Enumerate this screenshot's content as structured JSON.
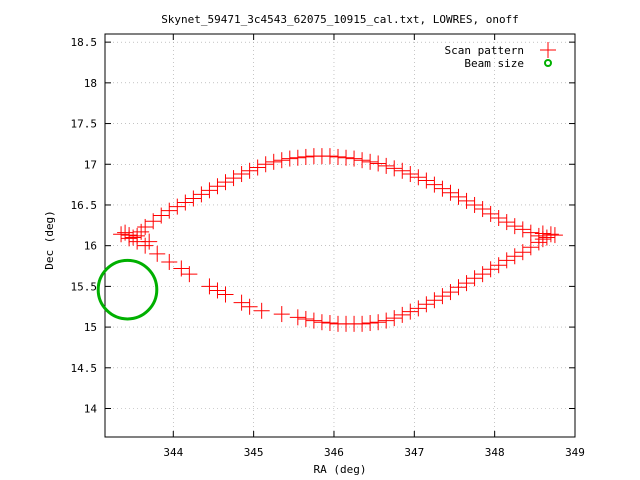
{
  "chart_data": {
    "type": "scatter",
    "title": "Skynet_59471_3c4543_62075_10915_cal.txt, LOWRES, onoff",
    "xlabel": "RA (deg)",
    "ylabel": "Dec (deg)",
    "xlim": [
      343.15,
      349.0
    ],
    "ylim": [
      13.65,
      18.6
    ],
    "xticks": [
      "344",
      "345",
      "346",
      "347",
      "348",
      "349"
    ],
    "yticks": [
      "14",
      "14.5",
      "15",
      "15.5",
      "16",
      "16.5",
      "17",
      "17.5",
      "18",
      "18.5"
    ],
    "legend_position": "top-right",
    "series": [
      {
        "name": "Scan pattern",
        "marker": "plus",
        "color": "#ff0000",
        "points": [
          [
            343.35,
            16.14
          ],
          [
            343.45,
            16.13
          ],
          [
            343.55,
            16.12
          ],
          [
            343.4,
            16.16
          ],
          [
            343.5,
            16.1
          ],
          [
            343.65,
            16.23
          ],
          [
            343.75,
            16.3
          ],
          [
            343.85,
            16.37
          ],
          [
            343.95,
            16.43
          ],
          [
            344.05,
            16.48
          ],
          [
            344.15,
            16.53
          ],
          [
            344.25,
            16.58
          ],
          [
            344.35,
            16.63
          ],
          [
            344.45,
            16.68
          ],
          [
            344.55,
            16.73
          ],
          [
            344.65,
            16.78
          ],
          [
            344.75,
            16.83
          ],
          [
            344.85,
            16.88
          ],
          [
            344.95,
            16.92
          ],
          [
            345.05,
            16.96
          ],
          [
            345.15,
            17.0
          ],
          [
            345.25,
            17.03
          ],
          [
            345.35,
            17.05
          ],
          [
            345.45,
            17.07
          ],
          [
            345.55,
            17.08
          ],
          [
            345.65,
            17.09
          ],
          [
            345.75,
            17.1
          ],
          [
            345.85,
            17.1
          ],
          [
            345.95,
            17.1
          ],
          [
            346.05,
            17.09
          ],
          [
            346.15,
            17.08
          ],
          [
            346.25,
            17.07
          ],
          [
            346.35,
            17.05
          ],
          [
            346.45,
            17.03
          ],
          [
            346.55,
            17.01
          ],
          [
            346.65,
            16.98
          ],
          [
            346.75,
            16.95
          ],
          [
            346.85,
            16.92
          ],
          [
            346.95,
            16.88
          ],
          [
            347.05,
            16.84
          ],
          [
            347.15,
            16.8
          ],
          [
            347.25,
            16.75
          ],
          [
            347.35,
            16.7
          ],
          [
            347.45,
            16.65
          ],
          [
            347.55,
            16.6
          ],
          [
            347.65,
            16.55
          ],
          [
            347.75,
            16.5
          ],
          [
            347.85,
            16.45
          ],
          [
            347.95,
            16.39
          ],
          [
            348.05,
            16.34
          ],
          [
            348.15,
            16.29
          ],
          [
            348.25,
            16.24
          ],
          [
            348.35,
            16.2
          ],
          [
            348.45,
            16.16
          ],
          [
            348.55,
            16.12
          ],
          [
            348.6,
            16.15
          ],
          [
            348.65,
            16.1
          ],
          [
            348.7,
            16.14
          ],
          [
            348.75,
            16.13
          ],
          [
            348.6,
            16.08
          ],
          [
            348.55,
            16.04
          ],
          [
            348.45,
            15.98
          ],
          [
            348.35,
            15.92
          ],
          [
            348.25,
            15.87
          ],
          [
            348.15,
            15.82
          ],
          [
            348.05,
            15.76
          ],
          [
            347.95,
            15.71
          ],
          [
            347.85,
            15.65
          ],
          [
            347.75,
            15.6
          ],
          [
            347.65,
            15.54
          ],
          [
            347.55,
            15.49
          ],
          [
            347.45,
            15.43
          ],
          [
            347.35,
            15.38
          ],
          [
            347.25,
            15.33
          ],
          [
            347.15,
            15.28
          ],
          [
            347.05,
            15.23
          ],
          [
            346.95,
            15.19
          ],
          [
            346.85,
            15.15
          ],
          [
            346.75,
            15.11
          ],
          [
            346.65,
            15.08
          ],
          [
            346.55,
            15.06
          ],
          [
            346.45,
            15.05
          ],
          [
            346.35,
            15.04
          ],
          [
            346.25,
            15.04
          ],
          [
            346.15,
            15.04
          ],
          [
            346.05,
            15.04
          ],
          [
            345.95,
            15.05
          ],
          [
            345.85,
            15.06
          ],
          [
            345.75,
            15.08
          ],
          [
            345.65,
            15.1
          ],
          [
            345.55,
            15.12
          ],
          [
            345.35,
            15.16
          ],
          [
            345.1,
            15.2
          ],
          [
            344.95,
            15.25
          ],
          [
            344.85,
            15.3
          ],
          [
            344.65,
            15.4
          ],
          [
            344.55,
            15.45
          ],
          [
            344.45,
            15.5
          ],
          [
            344.2,
            15.65
          ],
          [
            344.1,
            15.72
          ],
          [
            343.95,
            15.8
          ],
          [
            343.8,
            15.9
          ],
          [
            343.65,
            16.0
          ],
          [
            343.55,
            16.05
          ],
          [
            343.45,
            16.09
          ],
          [
            343.6,
            16.17
          ],
          [
            343.7,
            16.05
          ]
        ]
      },
      {
        "name": "Beam size",
        "marker": "circle",
        "color": "#00b000",
        "center": [
          343.43,
          15.46
        ],
        "radius_dec": 0.36
      }
    ]
  }
}
